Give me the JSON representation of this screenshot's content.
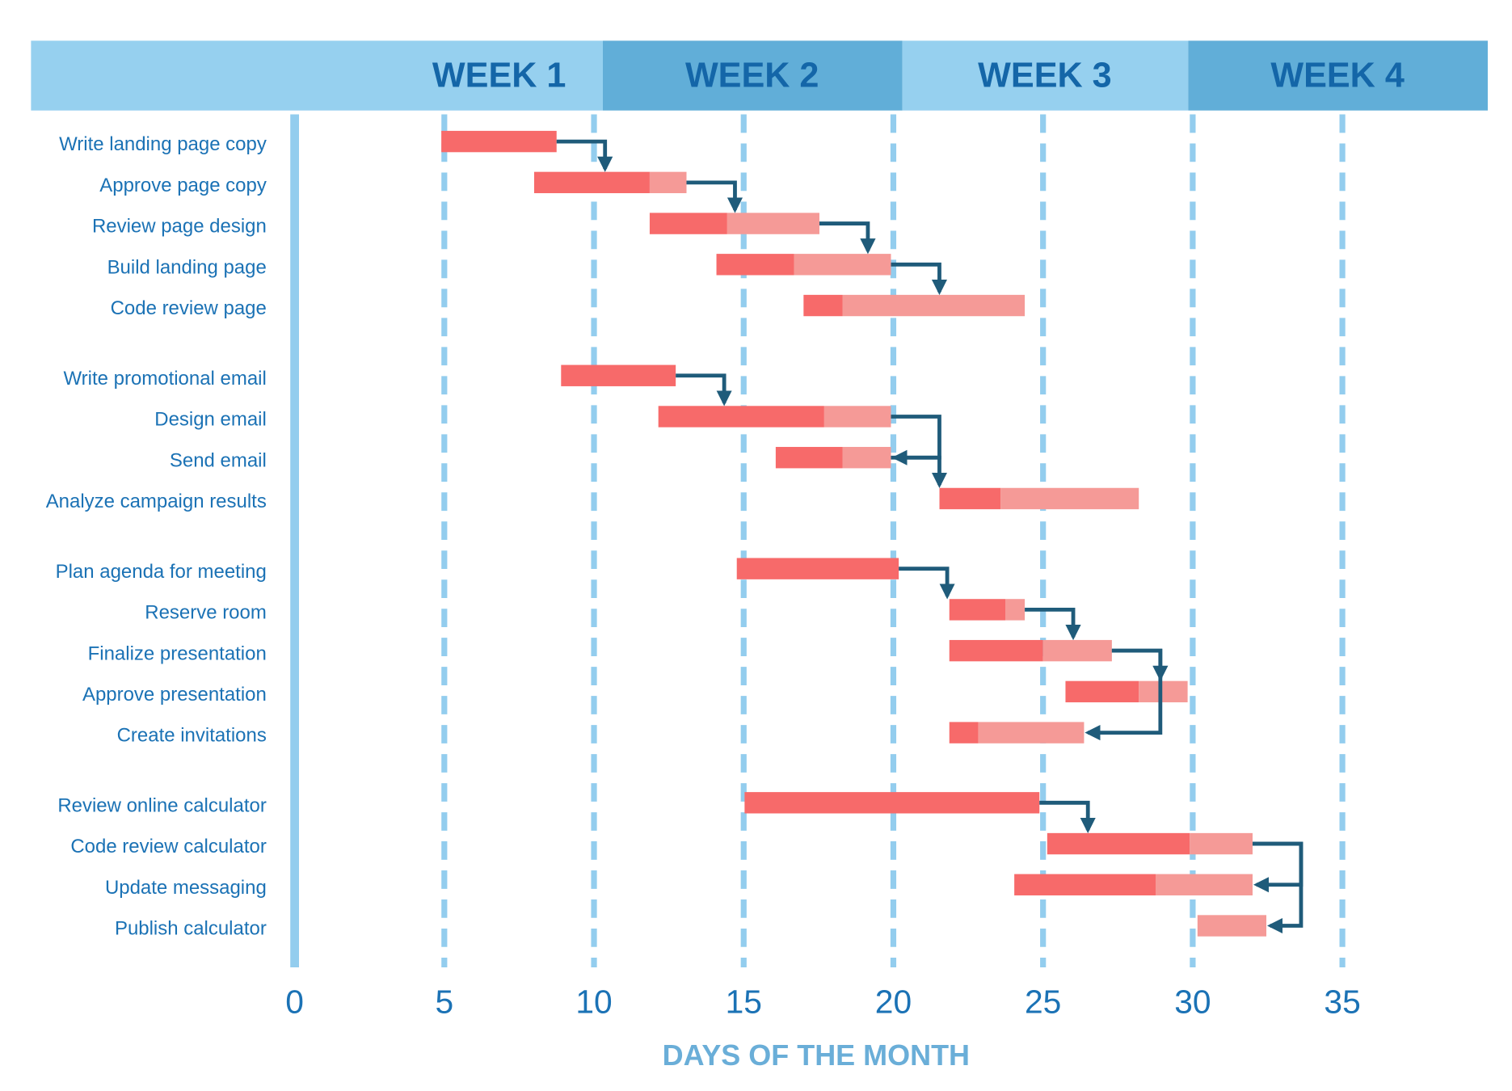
{
  "chart_data": {
    "type": "gantt",
    "header": [
      "WEEK 1",
      "WEEK 2",
      "WEEK 3",
      "WEEK 4"
    ],
    "groups": [
      {
        "tasks": [
          {
            "name": "Write landing page copy",
            "start": 4.9,
            "done": 8.75,
            "end": 8.75
          },
          {
            "name": "Approve page copy",
            "start": 8.0,
            "done": 11.86,
            "end": 13.09
          },
          {
            "name": "Review page design",
            "start": 11.86,
            "done": 14.45,
            "end": 17.53
          },
          {
            "name": "Build landing page",
            "start": 14.09,
            "done": 16.68,
            "end": 19.92
          },
          {
            "name": "Code review page",
            "start": 17.0,
            "done": 18.3,
            "end": 24.39
          }
        ],
        "links": [
          [
            0,
            1
          ],
          [
            1,
            2
          ],
          [
            2,
            3
          ],
          [
            3,
            4
          ]
        ]
      },
      {
        "tasks": [
          {
            "name": "Write promotional email",
            "start": 8.9,
            "done": 12.73,
            "end": 12.73
          },
          {
            "name": "Design email",
            "start": 12.15,
            "done": 17.69,
            "end": 19.92
          },
          {
            "name": "Send email",
            "start": 16.07,
            "done": 18.3,
            "end": 19.92
          },
          {
            "name": "Analyze campaign results",
            "start": 21.54,
            "done": 23.58,
            "end": 28.2
          }
        ],
        "links": [
          [
            0,
            1
          ],
          [
            1,
            2
          ],
          [
            2,
            3
          ]
        ]
      },
      {
        "tasks": [
          {
            "name": "Plan agenda for meeting",
            "start": 14.77,
            "done": 20.18,
            "end": 20.18
          },
          {
            "name": "Reserve room",
            "start": 21.87,
            "done": 23.74,
            "end": 24.39
          },
          {
            "name": "Finalize presentation",
            "start": 21.87,
            "done": 25.0,
            "end": 27.3
          },
          {
            "name": "Approve presentation",
            "start": 25.75,
            "done": 28.2,
            "end": 29.83
          },
          {
            "name": "Create invitations",
            "start": 21.87,
            "done": 22.84,
            "end": 26.37
          }
        ],
        "links": [
          [
            0,
            1
          ],
          [
            1,
            2
          ],
          [
            2,
            3
          ],
          [
            2,
            4
          ]
        ]
      },
      {
        "tasks": [
          {
            "name": "Review online calculator",
            "start": 15.03,
            "done": 24.88,
            "end": 24.88
          },
          {
            "name": "Code review calculator",
            "start": 25.14,
            "done": 29.9,
            "end": 32.0
          },
          {
            "name": "Update messaging",
            "start": 24.04,
            "done": 28.77,
            "end": 32.0
          },
          {
            "name": "Publish calculator",
            "start": 30.16,
            "done": 30.16,
            "end": 32.46
          }
        ],
        "links": [
          [
            0,
            1
          ],
          [
            1,
            2
          ],
          [
            1,
            3
          ]
        ]
      }
    ],
    "xlim": [
      0,
      35
    ],
    "xticks": [
      0,
      5,
      10,
      15,
      20,
      25,
      30,
      35
    ],
    "xlabel": "DAYS OF THE MONTH",
    "colors": {
      "done": "#f76a6a",
      "remaining": "#f59a97",
      "link": "#1f5b7a",
      "grid": "#93cdee",
      "header_light": "#96d0ef",
      "header_dark": "#61aed8"
    }
  }
}
